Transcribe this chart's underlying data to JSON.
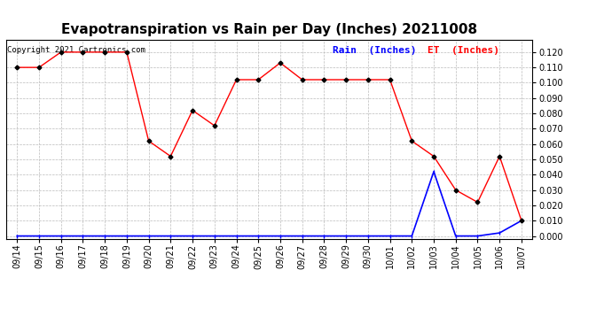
{
  "title": "Evapotranspiration vs Rain per Day (Inches) 20211008",
  "copyright": "Copyright 2021 Cartronics.com",
  "legend_rain": "Rain  (Inches)",
  "legend_et": "ET  (Inches)",
  "dates": [
    "09/14",
    "09/15",
    "09/16",
    "09/17",
    "09/18",
    "09/19",
    "09/20",
    "09/21",
    "09/22",
    "09/23",
    "09/24",
    "09/25",
    "09/26",
    "09/27",
    "09/28",
    "09/29",
    "09/30",
    "10/01",
    "10/02",
    "10/03",
    "10/04",
    "10/05",
    "10/06",
    "10/07"
  ],
  "et_values": [
    0.11,
    0.11,
    0.12,
    0.12,
    0.12,
    0.12,
    0.062,
    0.052,
    0.082,
    0.072,
    0.102,
    0.102,
    0.113,
    0.102,
    0.102,
    0.102,
    0.102,
    0.102,
    0.062,
    0.052,
    0.03,
    0.022,
    0.052,
    0.01
  ],
  "rain_values": [
    0.0,
    0.0,
    0.0,
    0.0,
    0.0,
    0.0,
    0.0,
    0.0,
    0.0,
    0.0,
    0.0,
    0.0,
    0.0,
    0.0,
    0.0,
    0.0,
    0.0,
    0.0,
    0.0,
    0.042,
    0.0,
    0.0,
    0.002,
    0.01
  ],
  "et_color": "red",
  "rain_color": "blue",
  "marker_color": "black",
  "ylim_min": -0.002,
  "ylim_max": 0.128,
  "yticks": [
    0.0,
    0.01,
    0.02,
    0.03,
    0.04,
    0.05,
    0.06,
    0.07,
    0.08,
    0.09,
    0.1,
    0.11,
    0.12
  ],
  "background_color": "#ffffff",
  "grid_color": "#bbbbbb",
  "title_fontsize": 11,
  "copyright_fontsize": 6.5,
  "legend_fontsize": 8,
  "tick_fontsize": 7
}
